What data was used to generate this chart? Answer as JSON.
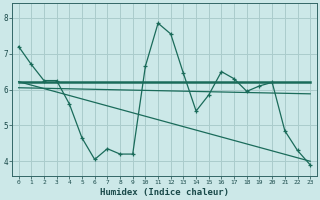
{
  "bg_color": "#cce8e8",
  "grid_color": "#aacccc",
  "line_color": "#1a6b5a",
  "xlabel": "Humidex (Indice chaleur)",
  "x_ticks": [
    0,
    1,
    2,
    3,
    4,
    5,
    6,
    7,
    8,
    9,
    10,
    11,
    12,
    13,
    14,
    15,
    16,
    17,
    18,
    19,
    20,
    21,
    22,
    23
  ],
  "y_ticks": [
    4,
    5,
    6,
    7,
    8
  ],
  "ylim": [
    3.6,
    8.4
  ],
  "xlim": [
    -0.5,
    23.5
  ],
  "line1_x": [
    0,
    1,
    2,
    3,
    4,
    5,
    6,
    7,
    8,
    9,
    10,
    11,
    12,
    13,
    14,
    15,
    16,
    17,
    18,
    19,
    20,
    21,
    22,
    23
  ],
  "line1_y": [
    7.2,
    6.7,
    6.25,
    6.25,
    5.6,
    4.65,
    4.05,
    4.35,
    4.2,
    4.2,
    6.65,
    7.85,
    7.55,
    6.45,
    5.4,
    5.85,
    6.5,
    6.3,
    5.95,
    6.1,
    6.2,
    4.85,
    4.3,
    3.9
  ],
  "line2_x": [
    0,
    23
  ],
  "line2_y": [
    6.22,
    6.22
  ],
  "line3_x": [
    0,
    23
  ],
  "line3_y": [
    6.05,
    5.88
  ],
  "line4_x": [
    0,
    23
  ],
  "line4_y": [
    6.22,
    4.0
  ]
}
